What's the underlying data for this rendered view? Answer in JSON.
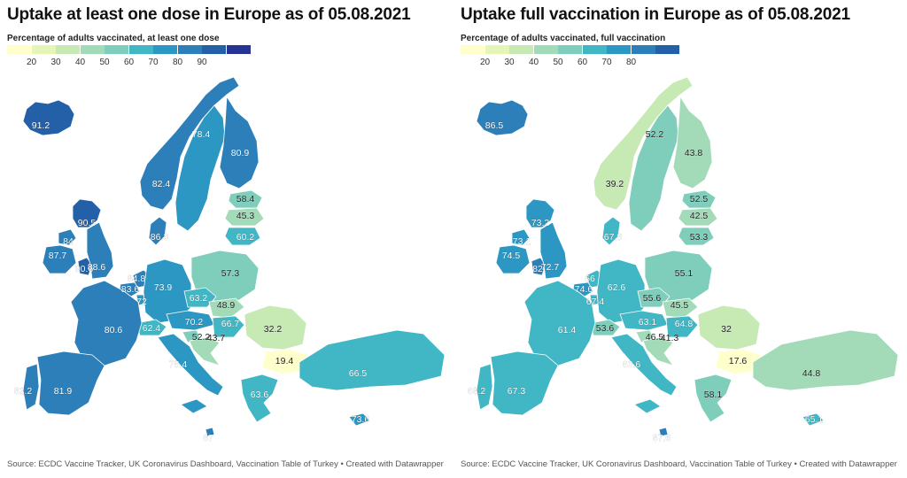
{
  "colors": {
    "scale": [
      "#ffffcc",
      "#e5f5b8",
      "#c7e9b4",
      "#a3dbb8",
      "#7fcdbb",
      "#41b6c4",
      "#2c97c2",
      "#2c7fb8",
      "#2360a8",
      "#253494"
    ],
    "border": "#ffffff",
    "background": "#ffffff"
  },
  "maps": [
    {
      "title": "Uptake at least one dose in Europe as of 05.08.2021",
      "subtitle": "Percentage of adults vaccinated, at least one dose",
      "legend_ticks": [
        "20",
        "30",
        "40",
        "50",
        "60",
        "70",
        "80",
        "90"
      ],
      "source": "Source: ECDC Vaccine Tracker, UK Coronavirus Dashboard, Vaccination Table of Turkey • Created with Datawrapper",
      "regions": [
        {
          "name": "Iceland",
          "value": 91.2,
          "label": "91.2"
        },
        {
          "name": "Norway",
          "value": 82.4,
          "label": "82.4"
        },
        {
          "name": "Sweden",
          "value": 78.4,
          "label": "78.4"
        },
        {
          "name": "Finland",
          "value": 80.9,
          "label": "80.9"
        },
        {
          "name": "Estonia",
          "value": 58.4,
          "label": "58.4"
        },
        {
          "name": "Latvia",
          "value": 45.3,
          "label": "45.3"
        },
        {
          "name": "Lithuania",
          "value": 60.2,
          "label": "60.2"
        },
        {
          "name": "Denmark",
          "value": 86.3,
          "label": "86.3"
        },
        {
          "name": "Scotland",
          "value": 90.5,
          "label": "90.5"
        },
        {
          "name": "Northern Ireland",
          "value": 84,
          "label": "84"
        },
        {
          "name": "Ireland",
          "value": 87.7,
          "label": "87.7"
        },
        {
          "name": "Wales",
          "value": 90.6,
          "label": "90.6"
        },
        {
          "name": "England",
          "value": 88.6,
          "label": "88.6"
        },
        {
          "name": "Netherlands",
          "value": 84.8,
          "label": "84.8"
        },
        {
          "name": "Belgium",
          "value": 83.6,
          "label": "83.6"
        },
        {
          "name": "Luxembourg",
          "value": 72,
          "label": "72"
        },
        {
          "name": "Germany",
          "value": 73.9,
          "label": "73.9"
        },
        {
          "name": "Poland",
          "value": 57.3,
          "label": "57.3"
        },
        {
          "name": "Czechia",
          "value": 63.2,
          "label": "63.2"
        },
        {
          "name": "Slovakia",
          "value": 48.9,
          "label": "48.9"
        },
        {
          "name": "Austria",
          "value": 70.2,
          "label": "70.2"
        },
        {
          "name": "Hungary",
          "value": 66.7,
          "label": "66.7"
        },
        {
          "name": "Slovenia",
          "value": 52.2,
          "label": "52.2"
        },
        {
          "name": "Croatia",
          "value": 43.7,
          "label": "43.7"
        },
        {
          "name": "Romania",
          "value": 32.2,
          "label": "32.2"
        },
        {
          "name": "Bulgaria",
          "value": 19.4,
          "label": "19.4"
        },
        {
          "name": "Switzerland",
          "value": 62.4,
          "label": "62.4"
        },
        {
          "name": "France",
          "value": 80.6,
          "label": "80.6"
        },
        {
          "name": "Italy",
          "value": 75.4,
          "label": "75.4"
        },
        {
          "name": "Portugal",
          "value": 82.2,
          "label": "82.2"
        },
        {
          "name": "Spain",
          "value": 81.9,
          "label": "81.9"
        },
        {
          "name": "Greece",
          "value": 63.6,
          "label": "63.6"
        },
        {
          "name": "Turkey",
          "value": 66.5,
          "label": "66.5"
        },
        {
          "name": "Cyprus",
          "value": 73.6,
          "label": "73.6"
        },
        {
          "name": "Malta",
          "value": 87,
          "label": "87"
        }
      ]
    },
    {
      "title": "Uptake full vaccination in Europe as of 05.08.2021",
      "subtitle": "Percentage of adults vaccinated, full vaccination",
      "legend_ticks": [
        "20",
        "30",
        "40",
        "50",
        "60",
        "70",
        "80"
      ],
      "source": "Source: ECDC Vaccine Tracker, UK Coronavirus Dashboard, Vaccination Table of Turkey • Created with Datawrapper",
      "regions": [
        {
          "name": "Iceland",
          "value": 86.5,
          "label": "86.5"
        },
        {
          "name": "Norway",
          "value": 39.2,
          "label": "39.2"
        },
        {
          "name": "Sweden",
          "value": 52.2,
          "label": "52.2"
        },
        {
          "name": "Finland",
          "value": 43.8,
          "label": "43.8"
        },
        {
          "name": "Estonia",
          "value": 52.5,
          "label": "52.5"
        },
        {
          "name": "Latvia",
          "value": 42.5,
          "label": "42.5"
        },
        {
          "name": "Lithuania",
          "value": 53.3,
          "label": "53.3"
        },
        {
          "name": "Denmark",
          "value": 67.8,
          "label": "67.8"
        },
        {
          "name": "Scotland",
          "value": 73.2,
          "label": "73.2"
        },
        {
          "name": "Northern Ireland",
          "value": 73.1,
          "label": "73.1"
        },
        {
          "name": "Ireland",
          "value": 74.5,
          "label": "74.5"
        },
        {
          "name": "Wales",
          "value": 82,
          "label": "82"
        },
        {
          "name": "England",
          "value": 72.7,
          "label": "72.7"
        },
        {
          "name": "Netherlands",
          "value": 66,
          "label": "66"
        },
        {
          "name": "Belgium",
          "value": 74.6,
          "label": "74.6"
        },
        {
          "name": "Luxembourg",
          "value": 67.4,
          "label": "67.4"
        },
        {
          "name": "Germany",
          "value": 62.6,
          "label": "62.6"
        },
        {
          "name": "Poland",
          "value": 55.1,
          "label": "55.1"
        },
        {
          "name": "Czechia",
          "value": 55.6,
          "label": "55.6"
        },
        {
          "name": "Slovakia",
          "value": 45.5,
          "label": "45.5"
        },
        {
          "name": "Austria",
          "value": 63.1,
          "label": "63.1"
        },
        {
          "name": "Hungary",
          "value": 64.8,
          "label": "64.8"
        },
        {
          "name": "Slovenia",
          "value": 46.5,
          "label": "46.5"
        },
        {
          "name": "Croatia",
          "value": 41.3,
          "label": "41.3"
        },
        {
          "name": "Romania",
          "value": 32,
          "label": "32"
        },
        {
          "name": "Bulgaria",
          "value": 17.6,
          "label": "17.6"
        },
        {
          "name": "Switzerland",
          "value": 53.6,
          "label": "53.6"
        },
        {
          "name": "France",
          "value": 61.4,
          "label": "61.4"
        },
        {
          "name": "Italy",
          "value": 63.6,
          "label": "63.6"
        },
        {
          "name": "Portugal",
          "value": 68.2,
          "label": "68.2"
        },
        {
          "name": "Spain",
          "value": 67.3,
          "label": "67.3"
        },
        {
          "name": "Greece",
          "value": 58.1,
          "label": "58.1"
        },
        {
          "name": "Turkey",
          "value": 44.8,
          "label": "44.8"
        },
        {
          "name": "Cyprus",
          "value": 65.1,
          "label": "65.1"
        },
        {
          "name": "Malta",
          "value": 87.6,
          "label": "87.6"
        }
      ]
    }
  ]
}
